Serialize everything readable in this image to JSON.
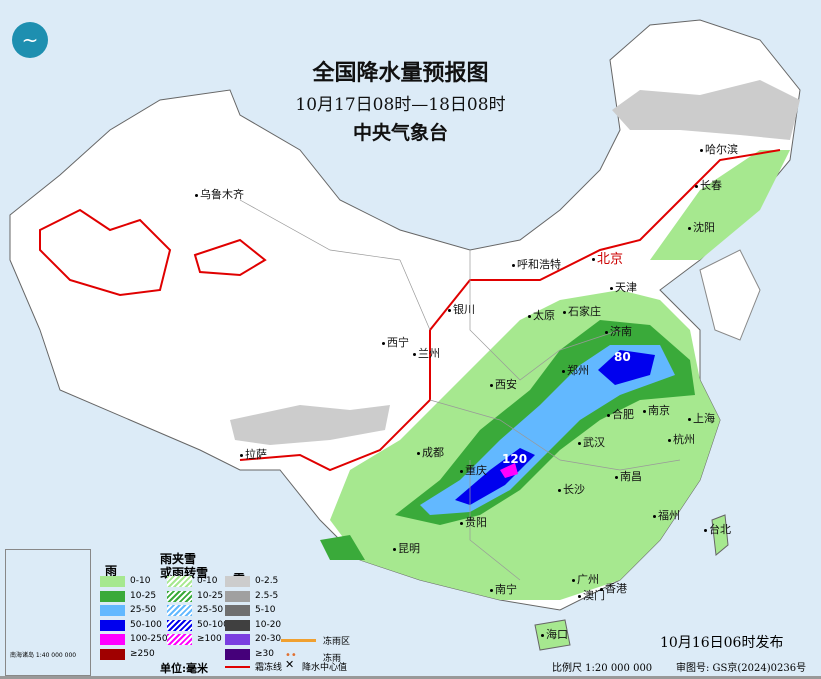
{
  "header": {
    "title": "全国降水量预报图",
    "period": "10月17日08时—18日08时",
    "agency": "中央气象台"
  },
  "logo": {
    "icon": "cma-logo"
  },
  "values": [
    "80",
    "120"
  ],
  "cities": [
    "乌鲁木齐",
    "哈尔滨",
    "长春",
    "沈阳",
    "呼和浩特",
    "北京",
    "天津",
    "银川",
    "石家庄",
    "太原",
    "济南",
    "西宁",
    "兰州",
    "郑州",
    "西安",
    "合肥",
    "南京",
    "上海",
    "成都",
    "武汉",
    "杭州",
    "拉萨",
    "重庆",
    "长沙",
    "南昌",
    "贵阳",
    "福州",
    "台北",
    "昆明",
    "南宁",
    "广州",
    "澳门",
    "香港",
    "海口"
  ],
  "legend": {
    "rain": {
      "title": "雨",
      "items": [
        {
          "label": "0-10",
          "color": "#a6e88f"
        },
        {
          "label": "10-25",
          "color": "#3aaa3a"
        },
        {
          "label": "25-50",
          "color": "#62b8ff"
        },
        {
          "label": "50-100",
          "color": "#0000ee"
        },
        {
          "label": "100-250",
          "color": "#ff00ff"
        },
        {
          "label": "≥250",
          "color": "#a00000"
        }
      ]
    },
    "sleet": {
      "title1": "雨夹雪",
      "title2": "或雨转雪",
      "items": [
        {
          "label": "0-10",
          "color": "#a6e88f"
        },
        {
          "label": "10-25",
          "color": "#3aaa3a"
        },
        {
          "label": "25-50",
          "color": "#62b8ff"
        },
        {
          "label": "50-100",
          "color": "#0000ee"
        },
        {
          "label": "≥100",
          "color": "#ff00ff"
        }
      ]
    },
    "snow": {
      "title": "雪",
      "items": [
        {
          "label": "0-2.5",
          "color": "#cccccc"
        },
        {
          "label": "2.5-5",
          "color": "#a0a0a0"
        },
        {
          "label": "5-10",
          "color": "#707070"
        },
        {
          "label": "10-20",
          "color": "#404040"
        },
        {
          "label": "20-30",
          "color": "#7a3ee0"
        },
        {
          "label": "≥30",
          "color": "#45007a"
        }
      ]
    },
    "unit": "单位:毫米",
    "freezing_rain_zone": "冻雨区",
    "freezing_rain": "冻雨",
    "frost_line": "霜冻线",
    "center": "降水中心值"
  },
  "inset_label": "南海诸岛 1:40 000 000",
  "issued": "10月16日06时发布",
  "scale": "比例尺 1:20 000 000",
  "audit": "审图号: GS京(2024)0236号"
}
